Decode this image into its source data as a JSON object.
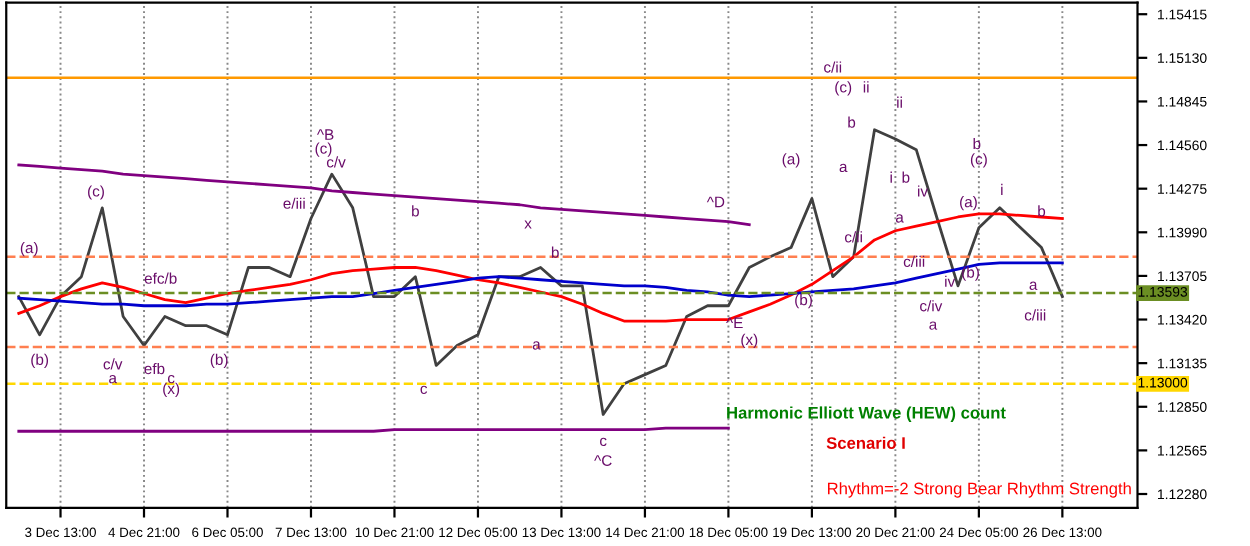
{
  "chart_data": {
    "type": "line",
    "categories": [
      null,
      null,
      "3 Dec 13:00",
      null,
      null,
      null,
      "4 Dec 21:00",
      null,
      null,
      null,
      "6 Dec 05:00",
      null,
      null,
      null,
      "7 Dec 13:00",
      null,
      null,
      null,
      "10 Dec 21:00",
      null,
      null,
      null,
      "12 Dec 05:00",
      null,
      null,
      null,
      "13 Dec 13:00",
      null,
      null,
      null,
      "14 Dec 21:00",
      null,
      null,
      null,
      "18 Dec 05:00",
      null,
      null,
      null,
      "19 Dec 13:00",
      null,
      null,
      null,
      "20 Dec 21:00",
      null,
      null,
      null,
      "24 Dec 05:00",
      null,
      null,
      null,
      "26 Dec 13:00",
      null,
      null,
      null
    ],
    "series": [
      {
        "color": "#404040",
        "values": [
          1.1357,
          1.1332,
          1.1357,
          1.137,
          1.1415,
          1.1344,
          1.1325,
          1.1344,
          1.1338,
          1.1338,
          1.1332,
          1.1376,
          1.1376,
          1.137,
          1.1408,
          1.1437,
          1.1415,
          1.1357,
          1.1357,
          1.137,
          1.1312,
          1.1325,
          1.1332,
          1.137,
          1.137,
          1.1376,
          1.1364,
          1.1364,
          1.128,
          1.13,
          1.1306,
          1.1312,
          1.1344,
          1.1351,
          1.1351,
          1.1376,
          1.1383,
          1.1389,
          1.1421,
          1.137,
          1.1383,
          1.1466,
          1.146,
          1.1453,
          1.1408,
          1.1364,
          1.1402,
          1.1415,
          1.1402,
          1.1389,
          1.1357,
          null,
          null,
          null
        ]
      },
      {
        "color": "#ff0000",
        "values": [
          1.1346,
          1.1351,
          1.1357,
          1.1362,
          1.1366,
          1.1363,
          1.1359,
          1.1355,
          1.1353,
          1.1356,
          1.1359,
          1.1361,
          1.1363,
          1.1365,
          1.1368,
          1.1372,
          1.1374,
          1.1375,
          1.1376,
          1.1376,
          1.1374,
          1.1371,
          1.1368,
          1.1366,
          1.1363,
          1.136,
          1.1357,
          1.1352,
          1.1346,
          1.1341,
          1.1341,
          1.1341,
          1.1342,
          1.1342,
          1.1342,
          1.1347,
          1.1352,
          1.1358,
          1.1365,
          1.1374,
          1.1383,
          1.1394,
          1.14,
          1.1403,
          1.1406,
          1.1409,
          1.1411,
          1.1411,
          1.141,
          1.1409,
          1.1408,
          null,
          null,
          null
        ]
      },
      {
        "color": "#0000cc",
        "values": [
          1.1356,
          1.1355,
          1.1354,
          1.1353,
          1.1352,
          1.1352,
          1.1351,
          1.1351,
          1.1351,
          1.1352,
          1.1352,
          1.1353,
          1.1354,
          1.1355,
          1.1356,
          1.1357,
          1.1357,
          1.1359,
          1.1361,
          1.1363,
          1.1365,
          1.1367,
          1.1369,
          1.137,
          1.1369,
          1.1368,
          1.1367,
          1.1366,
          1.1365,
          1.1364,
          1.1364,
          1.1363,
          1.1361,
          1.136,
          1.1358,
          1.1357,
          1.1358,
          1.1359,
          1.136,
          1.1361,
          1.1362,
          1.1364,
          1.1366,
          1.1369,
          1.1372,
          1.1375,
          1.1378,
          1.1379,
          1.1379,
          1.1379,
          1.1379,
          null,
          null,
          null
        ]
      },
      {
        "color": "#800080",
        "values": [
          1.1443,
          1.1442,
          1.1441,
          1.144,
          1.1439,
          1.1437,
          1.1436,
          1.1435,
          1.1434,
          1.1433,
          1.1432,
          1.1431,
          1.143,
          1.1429,
          1.1428,
          1.1426,
          1.1425,
          1.1424,
          1.1423,
          1.1422,
          1.1421,
          1.142,
          1.1419,
          1.1418,
          1.1417,
          1.1415,
          1.1414,
          1.1413,
          1.1412,
          1.1411,
          1.141,
          1.1409,
          1.1408,
          1.1407,
          1.1406,
          1.1404,
          null,
          null,
          null,
          null,
          null,
          null,
          null,
          null,
          null,
          null,
          null,
          null,
          null,
          null,
          null,
          null,
          null,
          null
        ]
      },
      {
        "color": "#800080",
        "values": [
          1.1269,
          1.1269,
          1.1269,
          1.1269,
          1.1269,
          1.1269,
          1.1269,
          1.1269,
          1.1269,
          1.1269,
          1.1269,
          1.1269,
          1.1269,
          1.1269,
          1.1269,
          1.1269,
          1.1269,
          1.1269,
          1.127,
          1.127,
          1.127,
          1.127,
          1.127,
          1.127,
          1.127,
          1.127,
          1.127,
          1.127,
          1.127,
          1.127,
          1.127,
          1.1271,
          1.1271,
          1.1271,
          1.1271,
          null,
          null,
          null,
          null,
          null,
          null,
          null,
          null,
          null,
          null,
          null,
          null,
          null,
          null,
          null,
          null,
          null,
          null,
          null
        ]
      }
    ],
    "ylim": [
      1.1219,
      1.1549
    ],
    "yticks": [
      {
        "value": 1.1228,
        "label": "1.12280"
      },
      {
        "value": 1.12565,
        "label": "1.12565"
      },
      {
        "value": 1.1285,
        "label": "1.12850"
      },
      {
        "value": 1.13135,
        "label": "1.13135"
      },
      {
        "value": 1.1342,
        "label": "1.13420"
      },
      {
        "value": 1.13705,
        "label": "1.13705"
      },
      {
        "value": 1.1399,
        "label": "1.13990"
      },
      {
        "value": 1.14275,
        "label": "1.14275"
      },
      {
        "value": 1.1456,
        "label": "1.14560"
      },
      {
        "value": 1.14845,
        "label": "1.14845"
      },
      {
        "value": 1.1513,
        "label": "1.15130"
      },
      {
        "value": 1.15415,
        "label": "1.15415"
      }
    ],
    "grid": "x",
    "ref_lines": [
      {
        "axis": "y",
        "value": 1.15,
        "color": "#ff9900",
        "line_style": "solid"
      },
      {
        "axis": "y",
        "value": 1.1383,
        "color": "#ff7f50",
        "line_style": "dashed"
      },
      {
        "axis": "y",
        "value": 1.1324,
        "color": "#ff7f50",
        "line_style": "dashed"
      },
      {
        "axis": "y",
        "value": 1.13,
        "label": "1.13000",
        "color": "#ffd700",
        "line_style": "dashed"
      },
      {
        "axis": "y",
        "value": 1.13593,
        "label": "1.13593",
        "color": "#6b8e23",
        "line_style": "dashed"
      }
    ],
    "annotations": [
      "(a)",
      "(b)",
      "(c)",
      "c/v",
      "a",
      "efb",
      "efc/b",
      "c",
      "(x)",
      "(b)",
      "^B",
      "(c)",
      "c/v",
      "e/iii",
      "b",
      "c",
      "x",
      "b",
      "a",
      "c",
      "^C",
      "^D",
      "^E",
      "(x)",
      "(a)",
      "(b)",
      "(c)",
      "ii",
      "c/ii",
      "b",
      "a",
      "c/ii",
      "ii",
      "i",
      "b",
      "iv",
      "a",
      "c/iii",
      "c/iv",
      "a",
      "(c)",
      "b",
      "(a)",
      "(b)",
      "iv",
      "i",
      "b",
      "a",
      "c/iii",
      "Harmonic Elliott Wave (HEW) count",
      "Scenario I",
      "Rhythm=-2 Strong Bear Rhythm Strength"
    ]
  }
}
